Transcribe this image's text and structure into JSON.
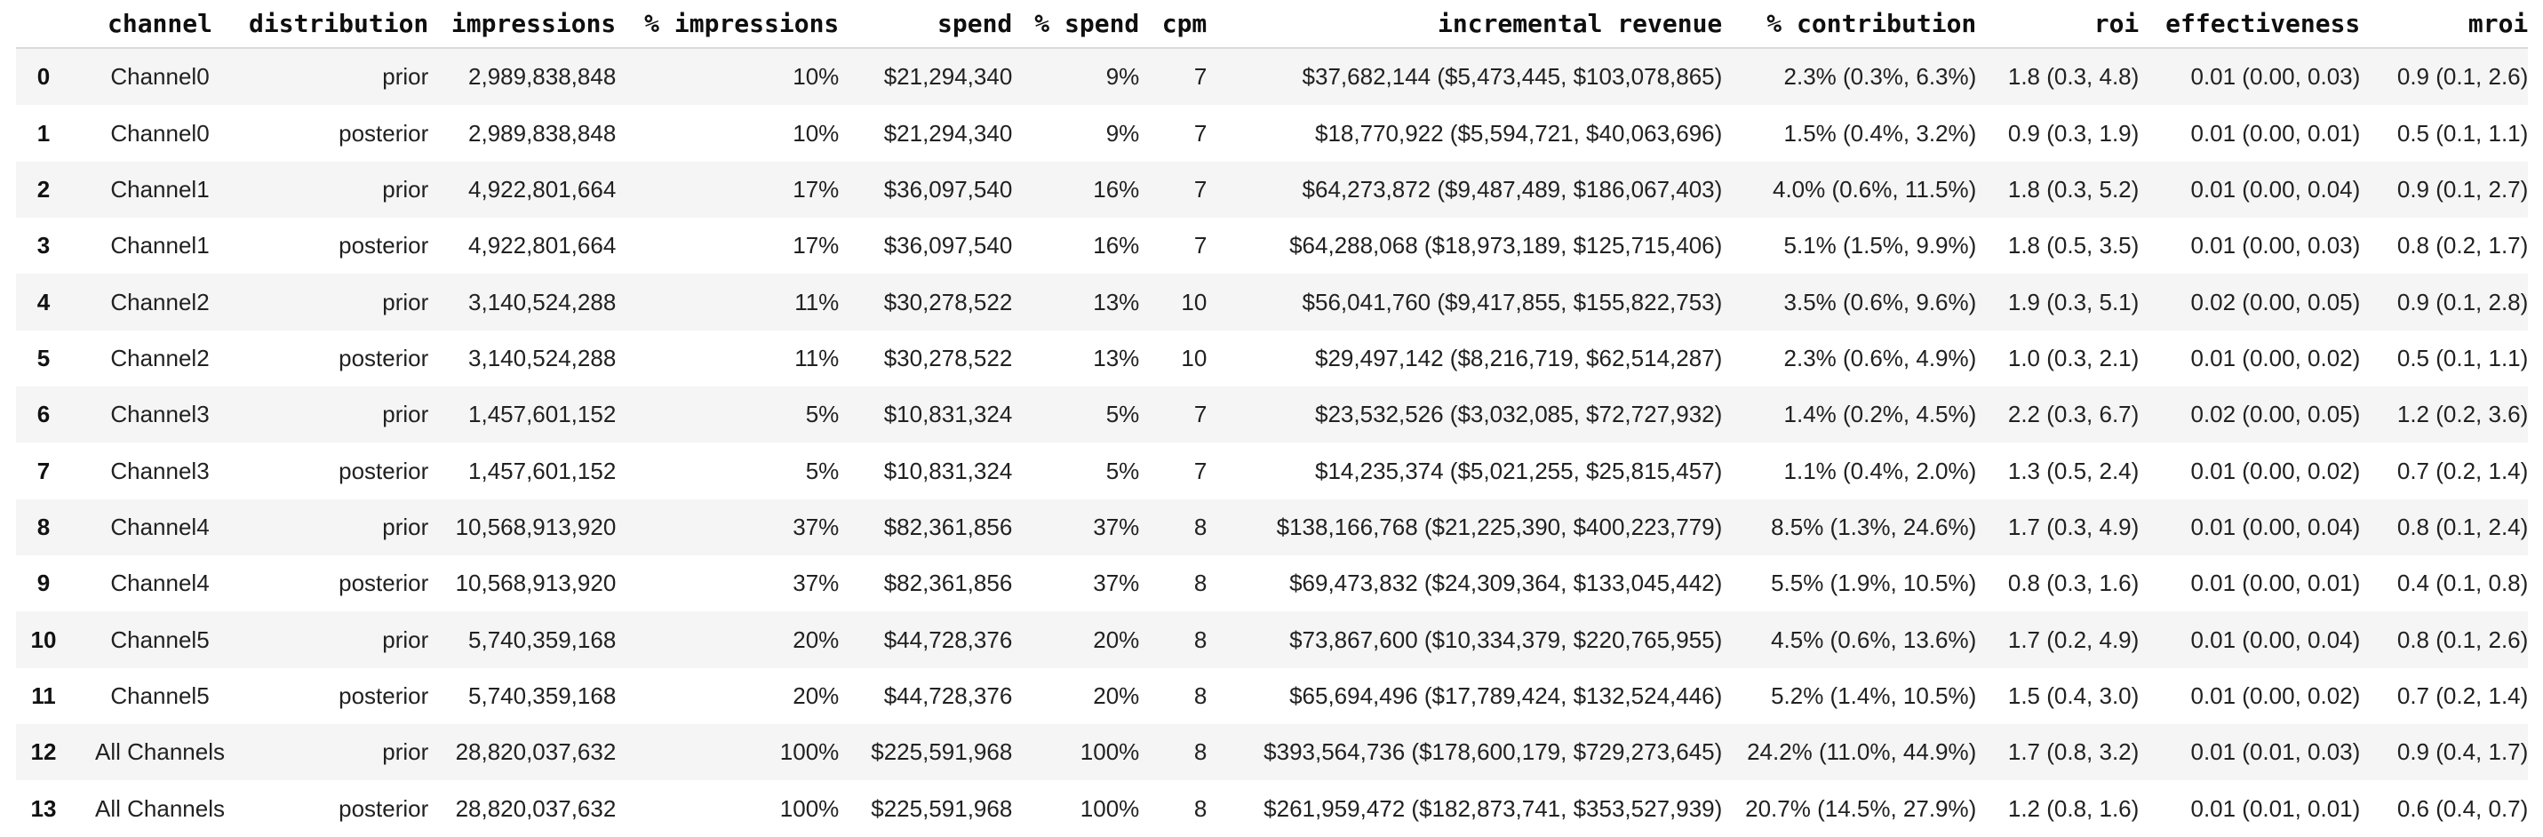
{
  "colors": {
    "background": "#ffffff",
    "stripe": "#f5f5f5",
    "header_border": "#d9d9d9",
    "header_text": "#0f0f0f",
    "body_text": "#212121"
  },
  "table": {
    "index_header": "",
    "columns": [
      "channel",
      "distribution",
      "impressions",
      "% impressions",
      "spend",
      "% spend",
      "cpm",
      "incremental revenue",
      "% contribution",
      "roi",
      "effectiveness",
      "mroi"
    ],
    "rows": [
      {
        "index": "0",
        "cells": [
          "Channel0",
          "prior",
          "2,989,838,848",
          "10%",
          "$21,294,340",
          "9%",
          "7",
          "$37,682,144 ($5,473,445, $103,078,865)",
          "2.3% (0.3%, 6.3%)",
          "1.8 (0.3, 4.8)",
          "0.01 (0.00, 0.03)",
          "0.9 (0.1, 2.6)"
        ]
      },
      {
        "index": "1",
        "cells": [
          "Channel0",
          "posterior",
          "2,989,838,848",
          "10%",
          "$21,294,340",
          "9%",
          "7",
          "$18,770,922 ($5,594,721, $40,063,696)",
          "1.5% (0.4%, 3.2%)",
          "0.9 (0.3, 1.9)",
          "0.01 (0.00, 0.01)",
          "0.5 (0.1, 1.1)"
        ]
      },
      {
        "index": "2",
        "cells": [
          "Channel1",
          "prior",
          "4,922,801,664",
          "17%",
          "$36,097,540",
          "16%",
          "7",
          "$64,273,872 ($9,487,489, $186,067,403)",
          "4.0% (0.6%, 11.5%)",
          "1.8 (0.3, 5.2)",
          "0.01 (0.00, 0.04)",
          "0.9 (0.1, 2.7)"
        ]
      },
      {
        "index": "3",
        "cells": [
          "Channel1",
          "posterior",
          "4,922,801,664",
          "17%",
          "$36,097,540",
          "16%",
          "7",
          "$64,288,068 ($18,973,189, $125,715,406)",
          "5.1% (1.5%, 9.9%)",
          "1.8 (0.5, 3.5)",
          "0.01 (0.00, 0.03)",
          "0.8 (0.2, 1.7)"
        ]
      },
      {
        "index": "4",
        "cells": [
          "Channel2",
          "prior",
          "3,140,524,288",
          "11%",
          "$30,278,522",
          "13%",
          "10",
          "$56,041,760 ($9,417,855, $155,822,753)",
          "3.5% (0.6%, 9.6%)",
          "1.9 (0.3, 5.1)",
          "0.02 (0.00, 0.05)",
          "0.9 (0.1, 2.8)"
        ]
      },
      {
        "index": "5",
        "cells": [
          "Channel2",
          "posterior",
          "3,140,524,288",
          "11%",
          "$30,278,522",
          "13%",
          "10",
          "$29,497,142 ($8,216,719, $62,514,287)",
          "2.3% (0.6%, 4.9%)",
          "1.0 (0.3, 2.1)",
          "0.01 (0.00, 0.02)",
          "0.5 (0.1, 1.1)"
        ]
      },
      {
        "index": "6",
        "cells": [
          "Channel3",
          "prior",
          "1,457,601,152",
          "5%",
          "$10,831,324",
          "5%",
          "7",
          "$23,532,526 ($3,032,085, $72,727,932)",
          "1.4% (0.2%, 4.5%)",
          "2.2 (0.3, 6.7)",
          "0.02 (0.00, 0.05)",
          "1.2 (0.2, 3.6)"
        ]
      },
      {
        "index": "7",
        "cells": [
          "Channel3",
          "posterior",
          "1,457,601,152",
          "5%",
          "$10,831,324",
          "5%",
          "7",
          "$14,235,374 ($5,021,255, $25,815,457)",
          "1.1% (0.4%, 2.0%)",
          "1.3 (0.5, 2.4)",
          "0.01 (0.00, 0.02)",
          "0.7 (0.2, 1.4)"
        ]
      },
      {
        "index": "8",
        "cells": [
          "Channel4",
          "prior",
          "10,568,913,920",
          "37%",
          "$82,361,856",
          "37%",
          "8",
          "$138,166,768 ($21,225,390, $400,223,779)",
          "8.5% (1.3%, 24.6%)",
          "1.7 (0.3, 4.9)",
          "0.01 (0.00, 0.04)",
          "0.8 (0.1, 2.4)"
        ]
      },
      {
        "index": "9",
        "cells": [
          "Channel4",
          "posterior",
          "10,568,913,920",
          "37%",
          "$82,361,856",
          "37%",
          "8",
          "$69,473,832 ($24,309,364, $133,045,442)",
          "5.5% (1.9%, 10.5%)",
          "0.8 (0.3, 1.6)",
          "0.01 (0.00, 0.01)",
          "0.4 (0.1, 0.8)"
        ]
      },
      {
        "index": "10",
        "cells": [
          "Channel5",
          "prior",
          "5,740,359,168",
          "20%",
          "$44,728,376",
          "20%",
          "8",
          "$73,867,600 ($10,334,379, $220,765,955)",
          "4.5% (0.6%, 13.6%)",
          "1.7 (0.2, 4.9)",
          "0.01 (0.00, 0.04)",
          "0.8 (0.1, 2.6)"
        ]
      },
      {
        "index": "11",
        "cells": [
          "Channel5",
          "posterior",
          "5,740,359,168",
          "20%",
          "$44,728,376",
          "20%",
          "8",
          "$65,694,496 ($17,789,424, $132,524,446)",
          "5.2% (1.4%, 10.5%)",
          "1.5 (0.4, 3.0)",
          "0.01 (0.00, 0.02)",
          "0.7 (0.2, 1.4)"
        ]
      },
      {
        "index": "12",
        "cells": [
          "All Channels",
          "prior",
          "28,820,037,632",
          "100%",
          "$225,591,968",
          "100%",
          "8",
          "$393,564,736 ($178,600,179, $729,273,645)",
          "24.2% (11.0%, 44.9%)",
          "1.7 (0.8, 3.2)",
          "0.01 (0.01, 0.03)",
          "0.9 (0.4, 1.7)"
        ]
      },
      {
        "index": "13",
        "cells": [
          "All Channels",
          "posterior",
          "28,820,037,632",
          "100%",
          "$225,591,968",
          "100%",
          "8",
          "$261,959,472 ($182,873,741, $353,527,939)",
          "20.7% (14.5%, 27.9%)",
          "1.2 (0.8, 1.6)",
          "0.01 (0.01, 0.01)",
          "0.6 (0.4, 0.7)"
        ]
      }
    ]
  }
}
